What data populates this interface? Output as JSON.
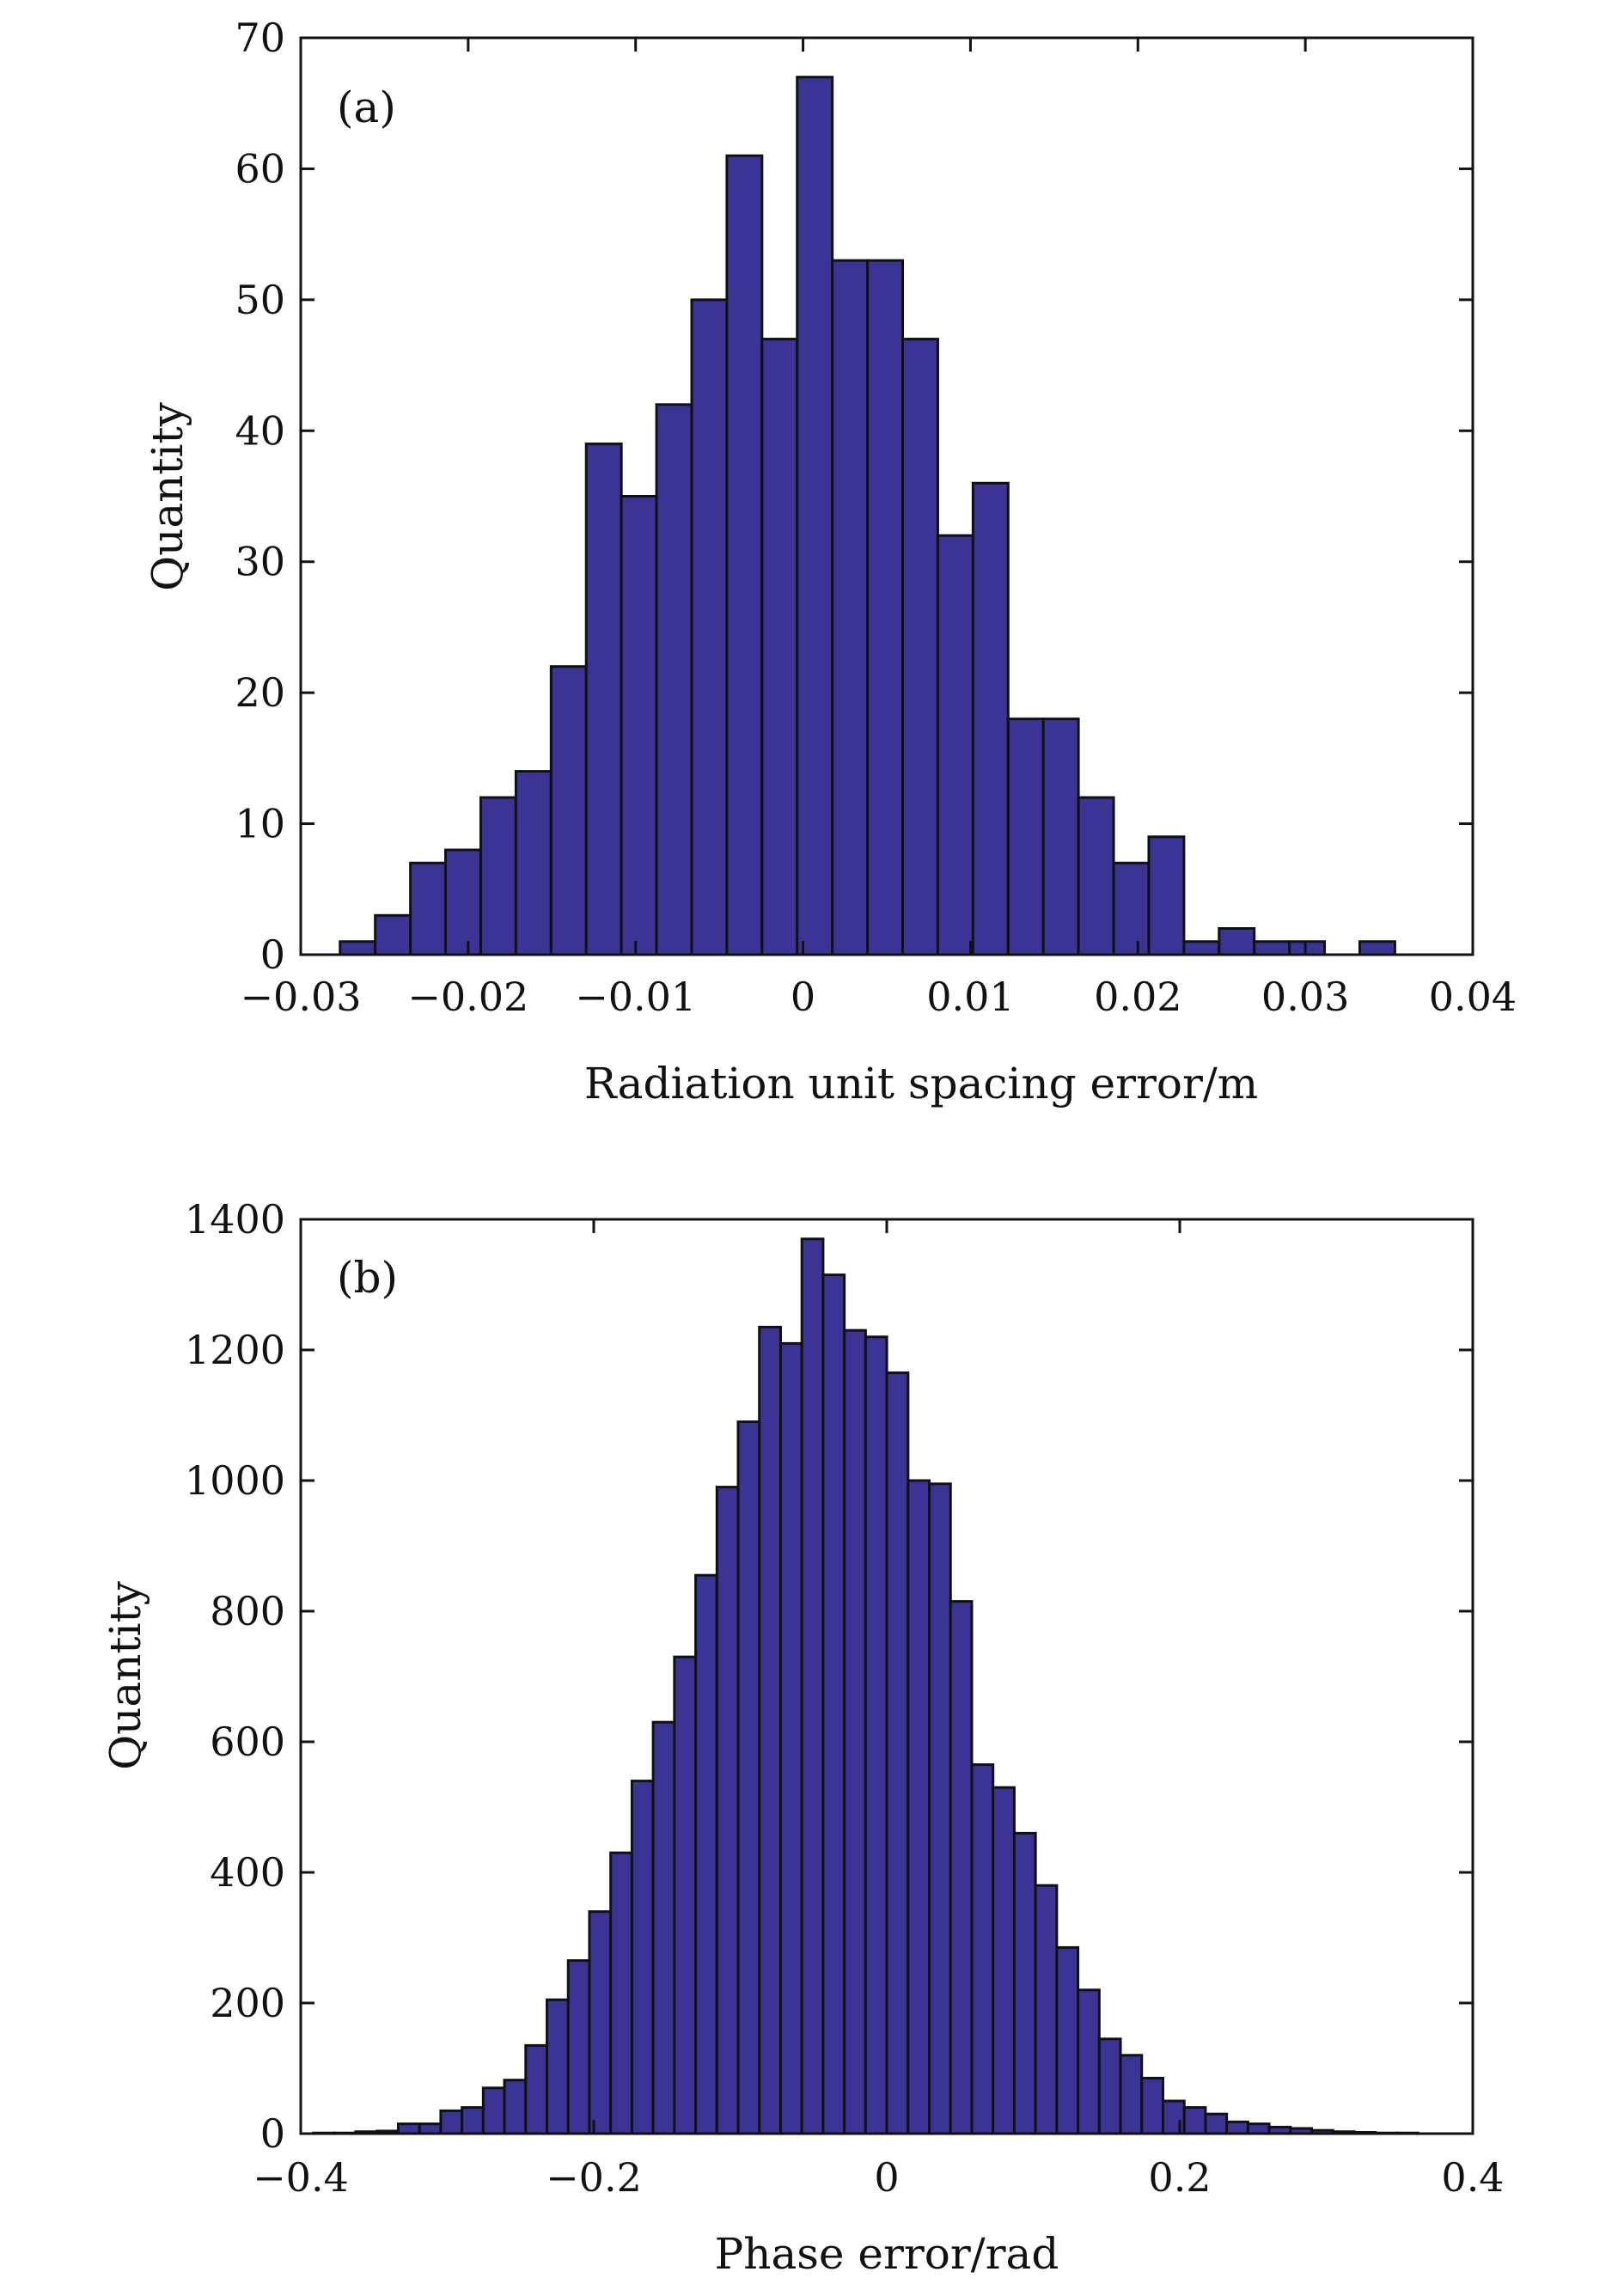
{
  "chart_data": [
    {
      "type": "bar",
      "panel_label": "(a)",
      "bar_color": "#3b3494",
      "xlabel": "Radiation unit spacing error/m",
      "ylabel": "Quantity",
      "xlim": [
        -0.03,
        0.04
      ],
      "ylim": [
        0,
        70
      ],
      "x_ticks": [
        -0.03,
        -0.02,
        -0.01,
        0,
        0.01,
        0.02,
        0.03,
        0.04
      ],
      "x_tick_labels": [
        "−0.03",
        "−0.02",
        "−0.01",
        "0",
        "0.01",
        "0.02",
        "0.03",
        "0.04"
      ],
      "y_ticks": [
        0,
        10,
        20,
        30,
        40,
        50,
        60,
        70
      ],
      "y_tick_labels": [
        "0",
        "10",
        "20",
        "30",
        "40",
        "50",
        "60",
        "70"
      ],
      "bin_width": 0.0021,
      "bin_centers": [
        -0.0266,
        -0.0245,
        -0.0224,
        -0.0203,
        -0.0182,
        -0.0161,
        -0.014,
        -0.0119,
        -0.0098,
        -0.0077,
        -0.0056,
        -0.0035,
        -0.0014,
        0.0007,
        0.0028,
        0.0049,
        0.007,
        0.0091,
        0.0112,
        0.0133,
        0.0154,
        0.0175,
        0.0196,
        0.0217,
        0.0238,
        0.0259,
        0.028,
        0.0301,
        0.0322,
        0.0343
      ],
      "values": [
        1,
        3,
        7,
        8,
        12,
        14,
        22,
        39,
        35,
        42,
        50,
        61,
        47,
        67,
        53,
        53,
        47,
        32,
        36,
        18,
        18,
        12,
        7,
        9,
        1,
        2,
        1,
        1,
        0,
        1
      ]
    },
    {
      "type": "bar",
      "panel_label": "(b)",
      "bar_color": "#3b3494",
      "xlabel": "Phase error/rad",
      "ylabel": "Quantity",
      "xlim": [
        -0.4,
        0.4
      ],
      "ylim": [
        0,
        1400
      ],
      "x_ticks": [
        -0.4,
        -0.2,
        0,
        0.2,
        0.4
      ],
      "x_tick_labels": [
        "−0.4",
        "−0.2",
        "0",
        "0.2",
        "0.4"
      ],
      "y_ticks": [
        0,
        200,
        400,
        600,
        800,
        1000,
        1200,
        1400
      ],
      "y_tick_labels": [
        "0",
        "200",
        "400",
        "600",
        "800",
        "1000",
        "1200",
        "1400"
      ],
      "bin_width": 0.0145,
      "bin_centers": [
        -0.3842,
        -0.3697,
        -0.3552,
        -0.3407,
        -0.3262,
        -0.3117,
        -0.2972,
        -0.2827,
        -0.2682,
        -0.2537,
        -0.2392,
        -0.2247,
        -0.2102,
        -0.1957,
        -0.1812,
        -0.1667,
        -0.1522,
        -0.1377,
        -0.1232,
        -0.1087,
        -0.0942,
        -0.0797,
        -0.0652,
        -0.0507,
        -0.0362,
        -0.0217,
        -0.0072,
        0.0073,
        0.0218,
        0.0363,
        0.0508,
        0.0653,
        0.0798,
        0.0943,
        0.1088,
        0.1233,
        0.1378,
        0.1523,
        0.1668,
        0.1813,
        0.1958,
        0.2103,
        0.2248,
        0.2393,
        0.2538,
        0.2683,
        0.2828,
        0.2973,
        0.3118,
        0.3263,
        0.3408,
        0.3553
      ],
      "values": [
        1,
        1,
        3,
        4,
        15,
        15,
        35,
        40,
        70,
        82,
        135,
        205,
        265,
        340,
        430,
        540,
        630,
        730,
        855,
        990,
        1090,
        1235,
        1210,
        1370,
        1315,
        1230,
        1220,
        1165,
        1000,
        995,
        815,
        565,
        530,
        460,
        380,
        285,
        220,
        145,
        120,
        85,
        50,
        40,
        30,
        18,
        15,
        10,
        8,
        5,
        3,
        2,
        1,
        1
      ]
    }
  ]
}
